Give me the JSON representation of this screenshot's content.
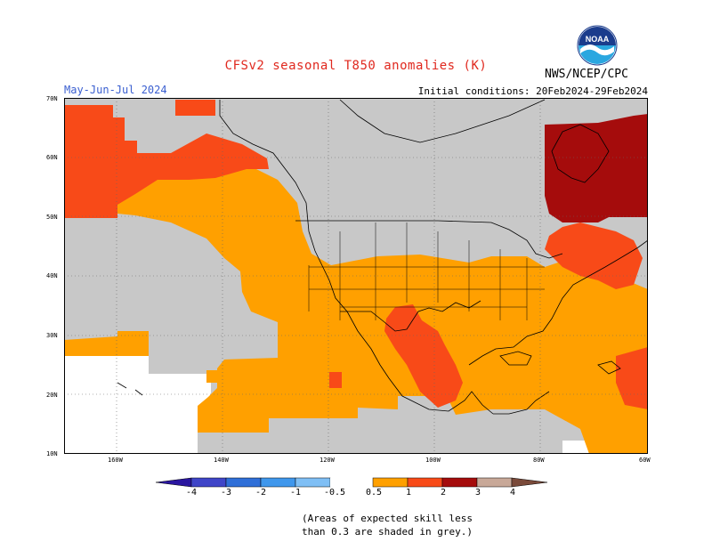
{
  "header": {
    "title": "CFSv2 seasonal T850 anomalies (K)",
    "period": "May-Jun-Jul 2024",
    "initial_conditions": "Initial conditions: 20Feb2024-29Feb2024",
    "agency": "NWS/NCEP/CPC",
    "logo_text": "NOAA"
  },
  "axes": {
    "lat_labels": [
      "70N",
      "60N",
      "50N",
      "40N",
      "30N",
      "20N",
      "10N"
    ],
    "lon_labels": [
      "160W",
      "140W",
      "120W",
      "100W",
      "80W",
      "60W"
    ]
  },
  "legend": {
    "labels": [
      "-4",
      "-3",
      "-2",
      "-1",
      "-0.5",
      "0.5",
      "1",
      "2",
      "3",
      "4"
    ],
    "colors": {
      "lt_-4": "#2a16a0",
      "-4_-3": "#3f45c8",
      "-3_-2": "#2f6fd8",
      "-2_-1": "#3f97ec",
      "-1_-0.5": "#7fbff5",
      "-0.5_0.5": "#ffffff",
      "0.5_1": "#ffa000",
      "1_2": "#f84a18",
      "2_3": "#a50c0c",
      "3_4": "#c8a898",
      "gt_4": "#7a4a3a"
    },
    "no_skill_color": "#c8c8c8"
  },
  "note": {
    "line1": "(Areas of expected skill less",
    "line2": "than 0.3 are shaded in grey.)"
  }
}
